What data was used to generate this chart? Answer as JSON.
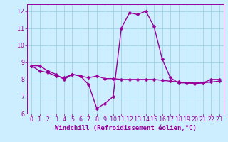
{
  "x": [
    0,
    1,
    2,
    3,
    4,
    5,
    6,
    7,
    8,
    9,
    10,
    11,
    12,
    13,
    14,
    15,
    16,
    17,
    18,
    19,
    20,
    21,
    22,
    23
  ],
  "line1": [
    8.8,
    8.8,
    8.5,
    8.3,
    8.0,
    8.3,
    8.2,
    7.7,
    6.3,
    6.6,
    7.0,
    11.0,
    11.9,
    11.8,
    12.0,
    11.1,
    9.2,
    8.1,
    7.8,
    7.8,
    7.8,
    7.8,
    8.0,
    8.0
  ],
  "line2": [
    8.8,
    8.5,
    8.4,
    8.2,
    8.1,
    8.3,
    8.2,
    8.1,
    8.2,
    8.05,
    8.05,
    8.0,
    8.0,
    8.0,
    8.0,
    8.0,
    7.95,
    7.9,
    7.85,
    7.8,
    7.75,
    7.8,
    7.85,
    7.9
  ],
  "line_color": "#990099",
  "bg_color": "#cceeff",
  "grid_color": "#99ccdd",
  "xlabel": "Windchill (Refroidissement éolien,°C)",
  "xlim": [
    -0.5,
    23.5
  ],
  "ylim": [
    6,
    12.4
  ],
  "xticks": [
    0,
    1,
    2,
    3,
    4,
    5,
    6,
    7,
    8,
    9,
    10,
    11,
    12,
    13,
    14,
    15,
    16,
    17,
    18,
    19,
    20,
    21,
    22,
    23
  ],
  "yticks": [
    6,
    7,
    8,
    9,
    10,
    11,
    12
  ],
  "xlabel_fontsize": 6.5,
  "tick_fontsize": 6,
  "line_width": 1.0,
  "marker_size": 2.5,
  "marker": "D"
}
